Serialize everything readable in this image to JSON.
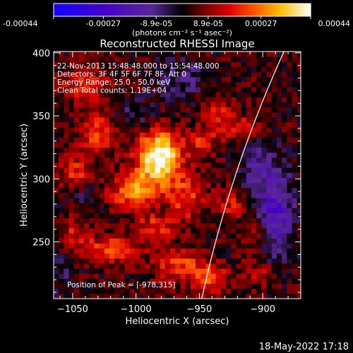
{
  "colorbar": {
    "tick_labels": [
      "-0.00044",
      "-0.00027",
      "-8.9e-05",
      "8.9e-05",
      "0.00027",
      "0.00044"
    ],
    "tick_values": [
      -0.00044,
      -0.00027,
      -8.9e-05,
      8.9e-05,
      0.00027,
      0.00044
    ],
    "range": [
      -0.00044,
      0.00044
    ],
    "units_label": "(photons cm⁻² s⁻¹ asec⁻²)"
  },
  "chart_data": {
    "type": "heatmap",
    "title": "Reconstructed RHESSI Image",
    "xlabel": "Heliocentric X (arcsec)",
    "ylabel": "Heliocentric Y (arcsec)",
    "xlim": [
      -1065,
      -870
    ],
    "ylim": [
      205,
      401
    ],
    "x_ticks": [
      -1050,
      -1000,
      -950,
      -900
    ],
    "y_ticks": [
      250,
      300,
      350,
      400
    ],
    "x_tick_labels": [
      "−1050",
      "−1000",
      "−950",
      "−900"
    ],
    "y_tick_labels": [
      "250",
      "300",
      "350",
      "400"
    ],
    "peak": [
      -978,
      315
    ],
    "limb": {
      "center": [
        0,
        0
      ],
      "radius_arcsec": 970
    },
    "info_lines": [
      "22-Nov-2013 15:48:48.000 to 15:54:48.000",
      "Detectors: 3F 4F 5F 6F 7F 8F, Att 0",
      "Energy Range: 25.0 - 50.0 keV",
      "Clean     Total counts: 1.19E+04"
    ],
    "peak_label": "Position of Peak = [-978,315]",
    "blobs": [
      {
        "x": -982,
        "y": 317,
        "sx": 12,
        "sy": 15,
        "a": 0.00044
      },
      {
        "x": -1002,
        "y": 290,
        "sx": 13,
        "sy": 10,
        "a": 0.00025
      },
      {
        "x": -1030,
        "y": 335,
        "sx": 10,
        "sy": 12,
        "a": 0.00018
      },
      {
        "x": -1048,
        "y": 305,
        "sx": 8,
        "sy": 9,
        "a": 0.00016
      },
      {
        "x": -1040,
        "y": 375,
        "sx": 14,
        "sy": 9,
        "a": 0.00014
      },
      {
        "x": -960,
        "y": 285,
        "sx": 10,
        "sy": 12,
        "a": 0.00018
      },
      {
        "x": -985,
        "y": 262,
        "sx": 11,
        "sy": 7,
        "a": 0.00016
      },
      {
        "x": -1020,
        "y": 245,
        "sx": 16,
        "sy": 8,
        "a": 0.00018
      },
      {
        "x": -965,
        "y": 232,
        "sx": 14,
        "sy": 9,
        "a": 0.00019
      },
      {
        "x": -940,
        "y": 220,
        "sx": 10,
        "sy": 8,
        "a": 0.00017
      },
      {
        "x": -935,
        "y": 350,
        "sx": 8,
        "sy": 14,
        "a": 0.00013
      },
      {
        "x": -915,
        "y": 340,
        "sx": 9,
        "sy": 8,
        "a": 0.00012
      },
      {
        "x": -925,
        "y": 280,
        "sx": 8,
        "sy": 8,
        "a": 0.00014
      },
      {
        "x": -905,
        "y": 255,
        "sx": 9,
        "sy": 9,
        "a": 0.00012
      },
      {
        "x": -950,
        "y": 330,
        "sx": 7,
        "sy": 9,
        "a": 0.00012
      },
      {
        "x": -900,
        "y": 225,
        "sx": 10,
        "sy": 8,
        "a": 0.00011
      },
      {
        "x": -1050,
        "y": 258,
        "sx": 8,
        "sy": 8,
        "a": 0.00011
      },
      {
        "x": -890,
        "y": 270,
        "sx": 10,
        "sy": 25,
        "a": -0.00024
      },
      {
        "x": -905,
        "y": 310,
        "sx": 10,
        "sy": 14,
        "a": -0.00014
      },
      {
        "x": -965,
        "y": 380,
        "sx": 16,
        "sy": 12,
        "a": -0.0001
      },
      {
        "x": -1000,
        "y": 350,
        "sx": 12,
        "sy": 10,
        "a": -9e-05
      },
      {
        "x": -1040,
        "y": 285,
        "sx": 8,
        "sy": 8,
        "a": -8e-05
      },
      {
        "x": -1060,
        "y": 225,
        "sx": 8,
        "sy": 10,
        "a": -8e-05
      }
    ],
    "baseline": 3e-05
  },
  "footer": {
    "timestamp": "18-May-2022 17:18"
  }
}
